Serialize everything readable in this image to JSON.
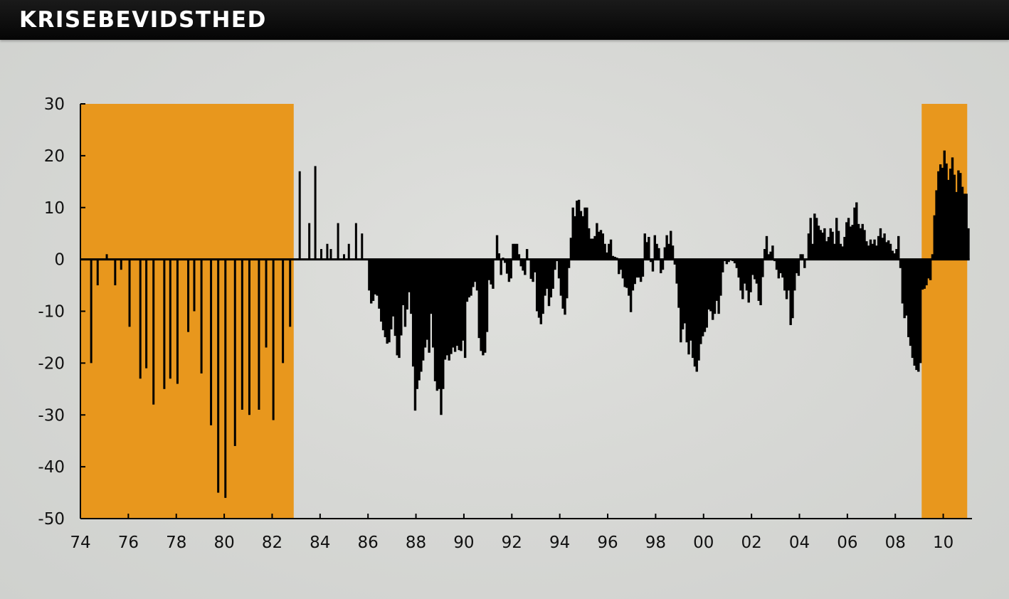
{
  "header": {
    "title": "KRISEBEVIDSTHED"
  },
  "colors": {
    "highlight": "#e8971d",
    "bars": "#000000",
    "axis": "#000000",
    "header_bg": "#000000"
  },
  "chart_data": {
    "type": "bar",
    "title": "",
    "xlabel": "",
    "ylabel": "",
    "xlim": [
      1974,
      2011.2
    ],
    "ylim": [
      -50,
      30
    ],
    "grid": false,
    "yticks": [
      30,
      20,
      10,
      0,
      -10,
      -20,
      -30,
      -40,
      -50
    ],
    "xticks": [
      {
        "value": 1974,
        "label": "74"
      },
      {
        "value": 1976,
        "label": "76"
      },
      {
        "value": 1978,
        "label": "78"
      },
      {
        "value": 1980,
        "label": "80"
      },
      {
        "value": 1982,
        "label": "82"
      },
      {
        "value": 1984,
        "label": "84"
      },
      {
        "value": 1986,
        "label": "86"
      },
      {
        "value": 1988,
        "label": "88"
      },
      {
        "value": 1990,
        "label": "90"
      },
      {
        "value": 1992,
        "label": "92"
      },
      {
        "value": 1994,
        "label": "94"
      },
      {
        "value": 1996,
        "label": "96"
      },
      {
        "value": 1998,
        "label": "98"
      },
      {
        "value": 2000,
        "label": "00"
      },
      {
        "value": 2002,
        "label": "02"
      },
      {
        "value": 2004,
        "label": "04"
      },
      {
        "value": 2006,
        "label": "06"
      },
      {
        "value": 2008,
        "label": "08"
      },
      {
        "value": 2010,
        "label": "10"
      }
    ],
    "shaded_periods": [
      [
        1974.0,
        1982.9
      ],
      [
        2009.1,
        2011.0
      ]
    ],
    "sparse": {
      "x": [
        1974.45,
        1974.72,
        1975.1,
        1975.45,
        1975.7,
        1976.05,
        1976.5,
        1976.75,
        1977.05,
        1977.5,
        1977.75,
        1978.05,
        1978.5,
        1978.75,
        1979.05,
        1979.45,
        1979.75,
        1980.05,
        1980.45,
        1980.75,
        1981.05,
        1981.45,
        1981.75,
        1982.05,
        1982.45,
        1982.75,
        1983.15,
        1983.55,
        1983.8,
        1984.05,
        1984.3,
        1984.45,
        1984.75,
        1985.0,
        1985.2,
        1985.5,
        1985.75
      ],
      "y": [
        -20,
        -5,
        1,
        -5,
        -2,
        -13,
        -23,
        -21,
        -28,
        -25,
        -23,
        -24,
        -14,
        -10,
        -22,
        -32,
        -45,
        -46,
        -36,
        -29,
        -30,
        -29,
        -17,
        -31,
        -20,
        -13,
        17,
        7,
        18,
        2,
        3,
        2,
        7,
        1,
        3,
        7,
        5
      ]
    },
    "dense": {
      "x_start": 1986.0,
      "x_end": 2011.0,
      "keys": [
        {
          "x": 1986.0,
          "y": -6
        },
        {
          "x": 1986.1,
          "y": -9
        },
        {
          "x": 1986.3,
          "y": -6
        },
        {
          "x": 1986.5,
          "y": -12
        },
        {
          "x": 1986.6,
          "y": -14
        },
        {
          "x": 1986.8,
          "y": -17
        },
        {
          "x": 1987.0,
          "y": -11
        },
        {
          "x": 1987.2,
          "y": -20
        },
        {
          "x": 1987.3,
          "y": -18
        },
        {
          "x": 1987.4,
          "y": -8
        },
        {
          "x": 1987.5,
          "y": -13
        },
        {
          "x": 1987.7,
          "y": -5
        },
        {
          "x": 1987.8,
          "y": -16
        },
        {
          "x": 1987.9,
          "y": -30
        },
        {
          "x": 1988.0,
          "y": -25
        },
        {
          "x": 1988.2,
          "y": -21
        },
        {
          "x": 1988.4,
          "y": -15
        },
        {
          "x": 1988.5,
          "y": -18
        },
        {
          "x": 1988.6,
          "y": -9
        },
        {
          "x": 1988.7,
          "y": -21
        },
        {
          "x": 1988.8,
          "y": -26
        },
        {
          "x": 1988.9,
          "y": -24
        },
        {
          "x": 1989.0,
          "y": -30
        },
        {
          "x": 1989.1,
          "y": -24
        },
        {
          "x": 1989.2,
          "y": -17
        },
        {
          "x": 1989.3,
          "y": -20
        },
        {
          "x": 1989.5,
          "y": -17
        },
        {
          "x": 1989.6,
          "y": -18
        },
        {
          "x": 1989.7,
          "y": -16
        },
        {
          "x": 1989.8,
          "y": -19
        },
        {
          "x": 1989.9,
          "y": -15
        },
        {
          "x": 1990.0,
          "y": -19
        },
        {
          "x": 1990.1,
          "y": -6
        },
        {
          "x": 1990.2,
          "y": -8
        },
        {
          "x": 1990.4,
          "y": -4
        },
        {
          "x": 1990.5,
          "y": -6
        },
        {
          "x": 1990.6,
          "y": -17
        },
        {
          "x": 1990.7,
          "y": -18
        },
        {
          "x": 1990.8,
          "y": -19
        },
        {
          "x": 1990.9,
          "y": -16
        },
        {
          "x": 1991.0,
          "y": -4
        },
        {
          "x": 1991.2,
          "y": -6
        },
        {
          "x": 1991.3,
          "y": 6
        },
        {
          "x": 1991.4,
          "y": 2
        },
        {
          "x": 1991.5,
          "y": -3
        },
        {
          "x": 1991.6,
          "y": 1
        },
        {
          "x": 1991.8,
          "y": -4
        },
        {
          "x": 1991.9,
          "y": -5
        },
        {
          "x": 1992.0,
          "y": 3
        },
        {
          "x": 1992.2,
          "y": 3
        },
        {
          "x": 1992.3,
          "y": -1
        },
        {
          "x": 1992.5,
          "y": -3
        },
        {
          "x": 1992.6,
          "y": 3
        },
        {
          "x": 1992.8,
          "y": -6
        },
        {
          "x": 1992.9,
          "y": -1
        },
        {
          "x": 1993.0,
          "y": -10
        },
        {
          "x": 1993.2,
          "y": -13
        },
        {
          "x": 1993.3,
          "y": -8
        },
        {
          "x": 1993.4,
          "y": -5
        },
        {
          "x": 1993.5,
          "y": -9
        },
        {
          "x": 1993.7,
          "y": -5
        },
        {
          "x": 1993.8,
          "y": 1
        },
        {
          "x": 1994.0,
          "y": -7
        },
        {
          "x": 1994.1,
          "y": -10
        },
        {
          "x": 1994.2,
          "y": -11
        },
        {
          "x": 1994.3,
          "y": -4
        },
        {
          "x": 1994.5,
          "y": 10
        },
        {
          "x": 1994.6,
          "y": 8
        },
        {
          "x": 1994.7,
          "y": 13
        },
        {
          "x": 1994.8,
          "y": 10
        },
        {
          "x": 1994.9,
          "y": 8
        },
        {
          "x": 1995.0,
          "y": 10
        },
        {
          "x": 1995.1,
          "y": 10
        },
        {
          "x": 1995.2,
          "y": 4
        },
        {
          "x": 1995.4,
          "y": 4
        },
        {
          "x": 1995.5,
          "y": 7
        },
        {
          "x": 1995.6,
          "y": 5
        },
        {
          "x": 1995.7,
          "y": 6
        },
        {
          "x": 1995.8,
          "y": 4
        },
        {
          "x": 1995.9,
          "y": 1
        },
        {
          "x": 1996.0,
          "y": 3
        },
        {
          "x": 1996.1,
          "y": 4
        },
        {
          "x": 1996.2,
          "y": -1
        },
        {
          "x": 1996.3,
          "y": 2
        },
        {
          "x": 1996.4,
          "y": -3
        },
        {
          "x": 1996.5,
          "y": -2
        },
        {
          "x": 1996.6,
          "y": -4
        },
        {
          "x": 1996.7,
          "y": -6
        },
        {
          "x": 1996.8,
          "y": -5
        },
        {
          "x": 1996.9,
          "y": -11
        },
        {
          "x": 1997.0,
          "y": -6
        },
        {
          "x": 1997.2,
          "y": -3
        },
        {
          "x": 1997.4,
          "y": -5
        },
        {
          "x": 1997.5,
          "y": 5
        },
        {
          "x": 1997.6,
          "y": 3
        },
        {
          "x": 1997.7,
          "y": 5
        },
        {
          "x": 1997.8,
          "y": -6
        },
        {
          "x": 1997.9,
          "y": 5
        },
        {
          "x": 1998.0,
          "y": 3
        },
        {
          "x": 1998.1,
          "y": 2
        },
        {
          "x": 1998.2,
          "y": -5
        },
        {
          "x": 1998.3,
          "y": 1
        },
        {
          "x": 1998.4,
          "y": 5
        },
        {
          "x": 1998.5,
          "y": 3
        },
        {
          "x": 1998.6,
          "y": 6
        },
        {
          "x": 1998.7,
          "y": 1
        },
        {
          "x": 1998.8,
          "y": -3
        },
        {
          "x": 1998.9,
          "y": -8
        },
        {
          "x": 1999.0,
          "y": -16
        },
        {
          "x": 1999.1,
          "y": -13
        },
        {
          "x": 1999.2,
          "y": -12
        },
        {
          "x": 1999.3,
          "y": -20
        },
        {
          "x": 1999.4,
          "y": -15
        },
        {
          "x": 1999.5,
          "y": -19
        },
        {
          "x": 1999.6,
          "y": -21
        },
        {
          "x": 1999.7,
          "y": -22
        },
        {
          "x": 1999.8,
          "y": -17
        },
        {
          "x": 1999.9,
          "y": -15
        },
        {
          "x": 2000.0,
          "y": -14
        },
        {
          "x": 2000.1,
          "y": -13
        },
        {
          "x": 2000.2,
          "y": -8
        },
        {
          "x": 2000.3,
          "y": -12
        },
        {
          "x": 2000.4,
          "y": -11
        },
        {
          "x": 2000.5,
          "y": -8
        },
        {
          "x": 2000.6,
          "y": -11
        },
        {
          "x": 2000.7,
          "y": -5
        },
        {
          "x": 2000.8,
          "y": 0
        },
        {
          "x": 2000.9,
          "y": -1
        },
        {
          "x": 2001.1,
          "y": 0
        },
        {
          "x": 2001.3,
          "y": -1
        },
        {
          "x": 2001.4,
          "y": -3
        },
        {
          "x": 2001.5,
          "y": -6
        },
        {
          "x": 2001.6,
          "y": -8
        },
        {
          "x": 2001.7,
          "y": -3
        },
        {
          "x": 2001.8,
          "y": -9
        },
        {
          "x": 2001.9,
          "y": -7
        },
        {
          "x": 2002.0,
          "y": -3
        },
        {
          "x": 2002.2,
          "y": -5
        },
        {
          "x": 2002.3,
          "y": -11
        },
        {
          "x": 2002.5,
          "y": 2
        },
        {
          "x": 2002.6,
          "y": 5
        },
        {
          "x": 2002.7,
          "y": -1
        },
        {
          "x": 2002.8,
          "y": 4
        },
        {
          "x": 2002.9,
          "y": 0
        },
        {
          "x": 2003.0,
          "y": -2
        },
        {
          "x": 2003.1,
          "y": -4
        },
        {
          "x": 2003.2,
          "y": -2
        },
        {
          "x": 2003.3,
          "y": -5
        },
        {
          "x": 2003.4,
          "y": -8
        },
        {
          "x": 2003.5,
          "y": -6
        },
        {
          "x": 2003.6,
          "y": -14
        },
        {
          "x": 2003.7,
          "y": -10
        },
        {
          "x": 2003.8,
          "y": -2
        },
        {
          "x": 2003.9,
          "y": -4
        },
        {
          "x": 2004.0,
          "y": 1
        },
        {
          "x": 2004.1,
          "y": 1
        },
        {
          "x": 2004.2,
          "y": -3
        },
        {
          "x": 2004.3,
          "y": 3
        },
        {
          "x": 2004.4,
          "y": 9
        },
        {
          "x": 2004.5,
          "y": 3
        },
        {
          "x": 2004.6,
          "y": 10
        },
        {
          "x": 2004.7,
          "y": 7
        },
        {
          "x": 2004.8,
          "y": 6
        },
        {
          "x": 2004.9,
          "y": 5
        },
        {
          "x": 2005.0,
          "y": 6
        },
        {
          "x": 2005.1,
          "y": 3
        },
        {
          "x": 2005.2,
          "y": 5
        },
        {
          "x": 2005.3,
          "y": 7
        },
        {
          "x": 2005.4,
          "y": 2
        },
        {
          "x": 2005.5,
          "y": 8
        },
        {
          "x": 2005.6,
          "y": 5
        },
        {
          "x": 2005.7,
          "y": 2
        },
        {
          "x": 2005.8,
          "y": 3
        },
        {
          "x": 2005.9,
          "y": 7
        },
        {
          "x": 2006.0,
          "y": 8
        },
        {
          "x": 2006.1,
          "y": 6
        },
        {
          "x": 2006.2,
          "y": 7
        },
        {
          "x": 2006.3,
          "y": 13
        },
        {
          "x": 2006.4,
          "y": 7
        },
        {
          "x": 2006.5,
          "y": 6
        },
        {
          "x": 2006.6,
          "y": 7
        },
        {
          "x": 2006.7,
          "y": 5
        },
        {
          "x": 2006.8,
          "y": 2
        },
        {
          "x": 2006.9,
          "y": 4
        },
        {
          "x": 2007.0,
          "y": 3
        },
        {
          "x": 2007.1,
          "y": 4
        },
        {
          "x": 2007.2,
          "y": 2
        },
        {
          "x": 2007.3,
          "y": 7
        },
        {
          "x": 2007.4,
          "y": 4
        },
        {
          "x": 2007.5,
          "y": 5
        },
        {
          "x": 2007.6,
          "y": 3
        },
        {
          "x": 2007.7,
          "y": 4
        },
        {
          "x": 2007.8,
          "y": 2
        },
        {
          "x": 2007.9,
          "y": 1
        },
        {
          "x": 2008.0,
          "y": 2
        },
        {
          "x": 2008.1,
          "y": 5
        },
        {
          "x": 2008.2,
          "y": -5
        },
        {
          "x": 2008.3,
          "y": -12
        },
        {
          "x": 2008.4,
          "y": -10
        },
        {
          "x": 2008.5,
          "y": -15
        },
        {
          "x": 2008.6,
          "y": -17
        },
        {
          "x": 2008.7,
          "y": -20
        },
        {
          "x": 2008.8,
          "y": -21
        },
        {
          "x": 2008.9,
          "y": -22
        },
        {
          "x": 2009.0,
          "y": -20
        },
        {
          "x": 2009.1,
          "y": -3
        },
        {
          "x": 2009.2,
          "y": -7
        },
        {
          "x": 2009.3,
          "y": -3
        },
        {
          "x": 2009.4,
          "y": -5
        },
        {
          "x": 2009.5,
          "y": 1
        },
        {
          "x": 2009.6,
          "y": 10
        },
        {
          "x": 2009.7,
          "y": 15
        },
        {
          "x": 2009.8,
          "y": 19
        },
        {
          "x": 2009.9,
          "y": 17
        },
        {
          "x": 2010.0,
          "y": 21
        },
        {
          "x": 2010.1,
          "y": 18
        },
        {
          "x": 2010.2,
          "y": 14
        },
        {
          "x": 2010.3,
          "y": 21
        },
        {
          "x": 2010.4,
          "y": 17
        },
        {
          "x": 2010.5,
          "y": 13
        },
        {
          "x": 2010.6,
          "y": 18
        },
        {
          "x": 2010.7,
          "y": 16
        },
        {
          "x": 2010.8,
          "y": 12
        },
        {
          "x": 2010.9,
          "y": 14
        },
        {
          "x": 2011.0,
          "y": 6
        }
      ]
    }
  }
}
